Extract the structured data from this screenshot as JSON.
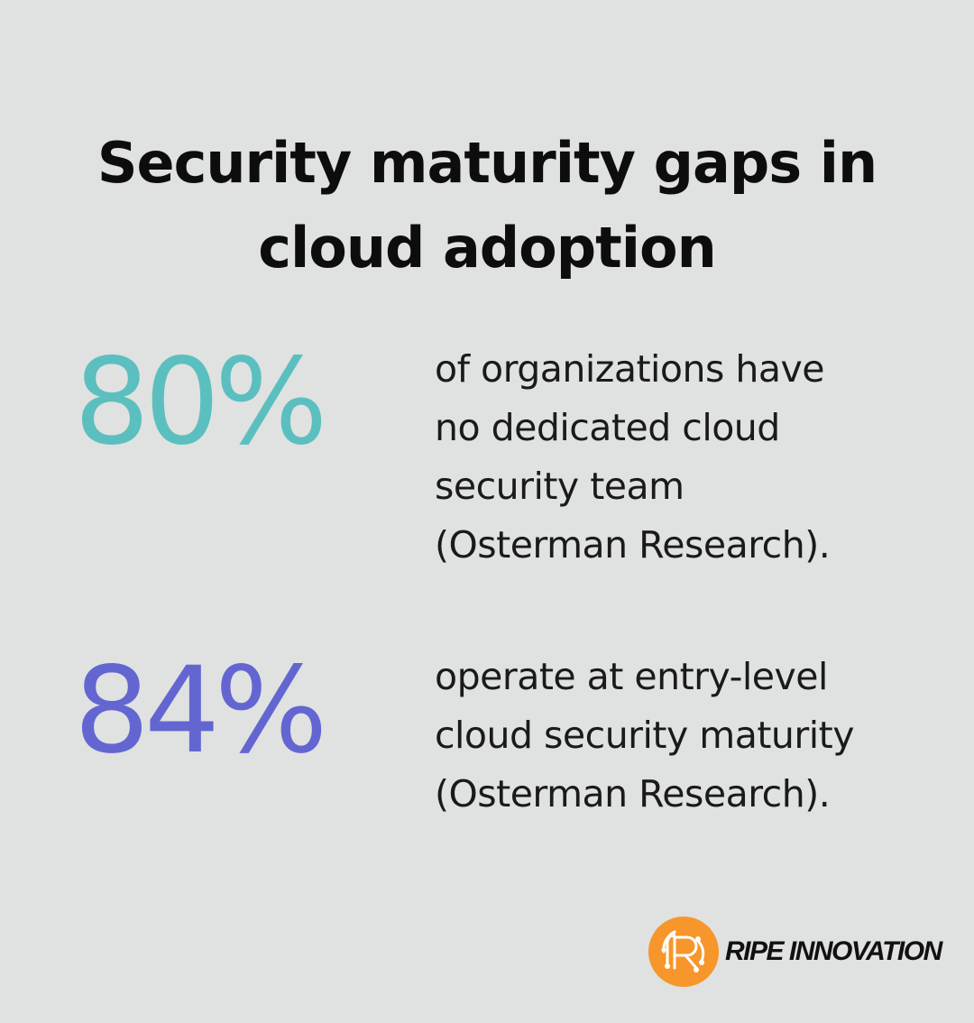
{
  "title": {
    "line1": "Security maturity gaps in",
    "line2": "cloud adoption"
  },
  "stats": [
    {
      "value": "80%",
      "color": "#5bbfbf",
      "description": [
        "of organizations have",
        "no dedicated cloud",
        "security team",
        "(Osterman Research)."
      ]
    },
    {
      "value": "84%",
      "color": "#6366d1",
      "description": [
        "operate at entry-level",
        "cloud security maturity",
        "(Osterman Research)."
      ]
    }
  ],
  "brand": {
    "name": "RIPE INNOVATION",
    "icon": "ripe-innovation-logo-icon",
    "color": "#f7962a"
  },
  "colors": {
    "background": "#dfe2e0",
    "text": "#0d0d0d"
  }
}
